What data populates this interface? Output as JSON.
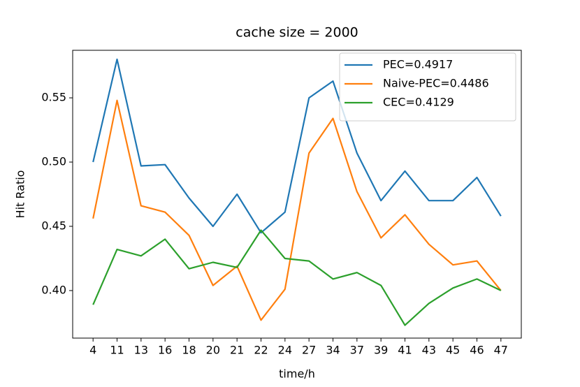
{
  "chart_data": {
    "type": "line",
    "title": "cache size = 2000",
    "x_label": "time/h",
    "y_label": "Hit Ratio",
    "categories": [
      "4",
      "11",
      "13",
      "16",
      "18",
      "20",
      "21",
      "22",
      "24",
      "27",
      "34",
      "37",
      "39",
      "41",
      "43",
      "45",
      "46",
      "47"
    ],
    "series": [
      {
        "name": "PEC=0.4917",
        "color": "#1f77b4",
        "values": [
          0.5,
          0.58,
          0.497,
          0.498,
          0.472,
          0.45,
          0.475,
          0.445,
          0.461,
          0.55,
          0.563,
          0.507,
          0.47,
          0.493,
          0.47,
          0.47,
          0.488,
          0.458
        ]
      },
      {
        "name": "Naive-PEC=0.4486",
        "color": "#ff7f0e",
        "values": [
          0.456,
          0.548,
          0.466,
          0.461,
          0.443,
          0.404,
          0.419,
          0.377,
          0.401,
          0.507,
          0.534,
          0.477,
          0.441,
          0.459,
          0.436,
          0.42,
          0.423,
          0.4
        ]
      },
      {
        "name": "CEC=0.4129",
        "color": "#2ca02c",
        "values": [
          0.389,
          0.432,
          0.427,
          0.44,
          0.417,
          0.422,
          0.418,
          0.447,
          0.425,
          0.423,
          0.409,
          0.414,
          0.404,
          0.373,
          0.39,
          0.402,
          0.409,
          0.4
        ]
      }
    ],
    "ylim": [
      0.363,
      0.587
    ],
    "yticks": [
      {
        "value": 0.4,
        "label": "0.40"
      },
      {
        "value": 0.45,
        "label": "0.45"
      },
      {
        "value": 0.5,
        "label": "0.50"
      },
      {
        "value": 0.55,
        "label": "0.55"
      }
    ],
    "grid": false,
    "legend": "upper right"
  }
}
